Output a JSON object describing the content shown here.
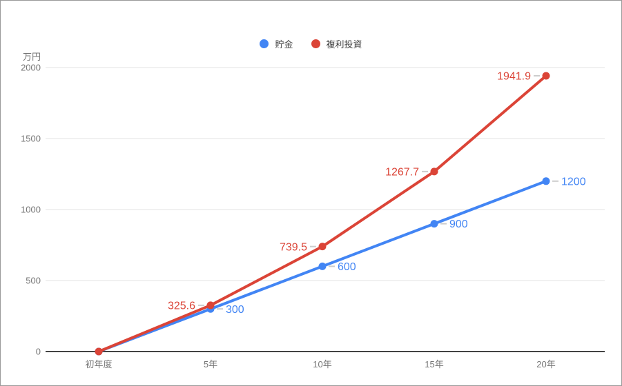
{
  "frame": {
    "background": "#ffffff",
    "border_color": "#999999"
  },
  "chart_data": {
    "type": "line",
    "title": "",
    "ylabel": "万円",
    "xlabel": "",
    "categories": [
      "初年度",
      "5年",
      "10年",
      "15年",
      "20年"
    ],
    "yticks": [
      0,
      500,
      1000,
      1500,
      2000
    ],
    "ylim": [
      0,
      2000
    ],
    "grid": true,
    "legend_position": "top",
    "series": [
      {
        "name": "貯金",
        "color": "#4285F4",
        "values": [
          0,
          300,
          600,
          900,
          1200
        ],
        "point_labels": [
          "",
          "300",
          "600",
          "900",
          "1200"
        ],
        "label_side": "right"
      },
      {
        "name": "複利投資",
        "color": "#DB4437",
        "values": [
          0,
          325.6,
          739.5,
          1267.7,
          1941.9
        ],
        "point_labels": [
          "",
          "325.6",
          "739.5",
          "1267.7",
          "1941.9"
        ],
        "label_side": "left"
      }
    ],
    "colors": {
      "grid": "#e3e3e3",
      "baseline": "#424242",
      "tick_label": "#757575",
      "legend_text": "#424242",
      "leader": "#cccccc"
    }
  }
}
